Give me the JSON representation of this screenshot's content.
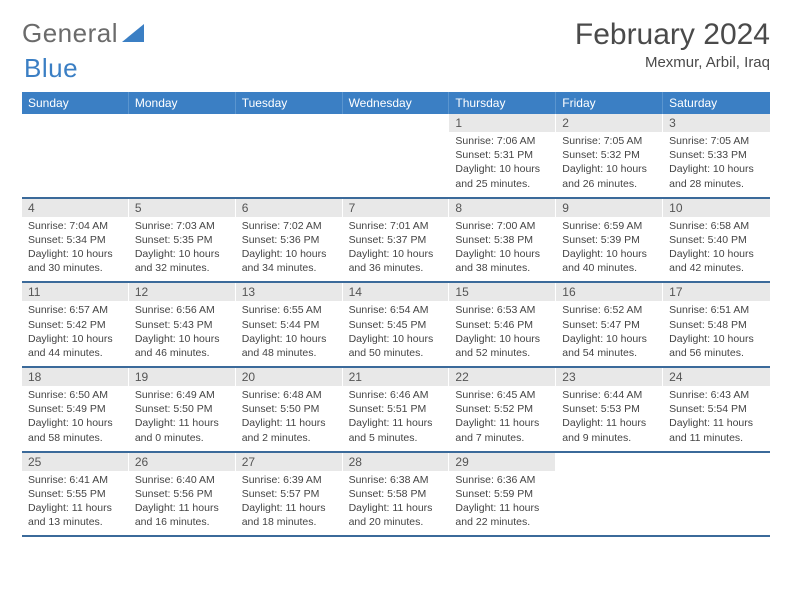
{
  "brand": {
    "part1": "General",
    "part2": "Blue"
  },
  "title": "February 2024",
  "location": "Mexmur, Arbil, Iraq",
  "colors": {
    "header_bg": "#3b7fc4",
    "header_text": "#ffffff",
    "daynum_bg": "#e8e8e8",
    "week_divider": "#3b6a9a",
    "body_text": "#444444",
    "title_text": "#4a4a4a"
  },
  "weekdays": [
    "Sunday",
    "Monday",
    "Tuesday",
    "Wednesday",
    "Thursday",
    "Friday",
    "Saturday"
  ],
  "weeks": [
    [
      {
        "n": "",
        "sr": "",
        "ss": "",
        "dl": ""
      },
      {
        "n": "",
        "sr": "",
        "ss": "",
        "dl": ""
      },
      {
        "n": "",
        "sr": "",
        "ss": "",
        "dl": ""
      },
      {
        "n": "",
        "sr": "",
        "ss": "",
        "dl": ""
      },
      {
        "n": "1",
        "sr": "Sunrise: 7:06 AM",
        "ss": "Sunset: 5:31 PM",
        "dl": "Daylight: 10 hours and 25 minutes."
      },
      {
        "n": "2",
        "sr": "Sunrise: 7:05 AM",
        "ss": "Sunset: 5:32 PM",
        "dl": "Daylight: 10 hours and 26 minutes."
      },
      {
        "n": "3",
        "sr": "Sunrise: 7:05 AM",
        "ss": "Sunset: 5:33 PM",
        "dl": "Daylight: 10 hours and 28 minutes."
      }
    ],
    [
      {
        "n": "4",
        "sr": "Sunrise: 7:04 AM",
        "ss": "Sunset: 5:34 PM",
        "dl": "Daylight: 10 hours and 30 minutes."
      },
      {
        "n": "5",
        "sr": "Sunrise: 7:03 AM",
        "ss": "Sunset: 5:35 PM",
        "dl": "Daylight: 10 hours and 32 minutes."
      },
      {
        "n": "6",
        "sr": "Sunrise: 7:02 AM",
        "ss": "Sunset: 5:36 PM",
        "dl": "Daylight: 10 hours and 34 minutes."
      },
      {
        "n": "7",
        "sr": "Sunrise: 7:01 AM",
        "ss": "Sunset: 5:37 PM",
        "dl": "Daylight: 10 hours and 36 minutes."
      },
      {
        "n": "8",
        "sr": "Sunrise: 7:00 AM",
        "ss": "Sunset: 5:38 PM",
        "dl": "Daylight: 10 hours and 38 minutes."
      },
      {
        "n": "9",
        "sr": "Sunrise: 6:59 AM",
        "ss": "Sunset: 5:39 PM",
        "dl": "Daylight: 10 hours and 40 minutes."
      },
      {
        "n": "10",
        "sr": "Sunrise: 6:58 AM",
        "ss": "Sunset: 5:40 PM",
        "dl": "Daylight: 10 hours and 42 minutes."
      }
    ],
    [
      {
        "n": "11",
        "sr": "Sunrise: 6:57 AM",
        "ss": "Sunset: 5:42 PM",
        "dl": "Daylight: 10 hours and 44 minutes."
      },
      {
        "n": "12",
        "sr": "Sunrise: 6:56 AM",
        "ss": "Sunset: 5:43 PM",
        "dl": "Daylight: 10 hours and 46 minutes."
      },
      {
        "n": "13",
        "sr": "Sunrise: 6:55 AM",
        "ss": "Sunset: 5:44 PM",
        "dl": "Daylight: 10 hours and 48 minutes."
      },
      {
        "n": "14",
        "sr": "Sunrise: 6:54 AM",
        "ss": "Sunset: 5:45 PM",
        "dl": "Daylight: 10 hours and 50 minutes."
      },
      {
        "n": "15",
        "sr": "Sunrise: 6:53 AM",
        "ss": "Sunset: 5:46 PM",
        "dl": "Daylight: 10 hours and 52 minutes."
      },
      {
        "n": "16",
        "sr": "Sunrise: 6:52 AM",
        "ss": "Sunset: 5:47 PM",
        "dl": "Daylight: 10 hours and 54 minutes."
      },
      {
        "n": "17",
        "sr": "Sunrise: 6:51 AM",
        "ss": "Sunset: 5:48 PM",
        "dl": "Daylight: 10 hours and 56 minutes."
      }
    ],
    [
      {
        "n": "18",
        "sr": "Sunrise: 6:50 AM",
        "ss": "Sunset: 5:49 PM",
        "dl": "Daylight: 10 hours and 58 minutes."
      },
      {
        "n": "19",
        "sr": "Sunrise: 6:49 AM",
        "ss": "Sunset: 5:50 PM",
        "dl": "Daylight: 11 hours and 0 minutes."
      },
      {
        "n": "20",
        "sr": "Sunrise: 6:48 AM",
        "ss": "Sunset: 5:50 PM",
        "dl": "Daylight: 11 hours and 2 minutes."
      },
      {
        "n": "21",
        "sr": "Sunrise: 6:46 AM",
        "ss": "Sunset: 5:51 PM",
        "dl": "Daylight: 11 hours and 5 minutes."
      },
      {
        "n": "22",
        "sr": "Sunrise: 6:45 AM",
        "ss": "Sunset: 5:52 PM",
        "dl": "Daylight: 11 hours and 7 minutes."
      },
      {
        "n": "23",
        "sr": "Sunrise: 6:44 AM",
        "ss": "Sunset: 5:53 PM",
        "dl": "Daylight: 11 hours and 9 minutes."
      },
      {
        "n": "24",
        "sr": "Sunrise: 6:43 AM",
        "ss": "Sunset: 5:54 PM",
        "dl": "Daylight: 11 hours and 11 minutes."
      }
    ],
    [
      {
        "n": "25",
        "sr": "Sunrise: 6:41 AM",
        "ss": "Sunset: 5:55 PM",
        "dl": "Daylight: 11 hours and 13 minutes."
      },
      {
        "n": "26",
        "sr": "Sunrise: 6:40 AM",
        "ss": "Sunset: 5:56 PM",
        "dl": "Daylight: 11 hours and 16 minutes."
      },
      {
        "n": "27",
        "sr": "Sunrise: 6:39 AM",
        "ss": "Sunset: 5:57 PM",
        "dl": "Daylight: 11 hours and 18 minutes."
      },
      {
        "n": "28",
        "sr": "Sunrise: 6:38 AM",
        "ss": "Sunset: 5:58 PM",
        "dl": "Daylight: 11 hours and 20 minutes."
      },
      {
        "n": "29",
        "sr": "Sunrise: 6:36 AM",
        "ss": "Sunset: 5:59 PM",
        "dl": "Daylight: 11 hours and 22 minutes."
      },
      {
        "n": "",
        "sr": "",
        "ss": "",
        "dl": ""
      },
      {
        "n": "",
        "sr": "",
        "ss": "",
        "dl": ""
      }
    ]
  ]
}
